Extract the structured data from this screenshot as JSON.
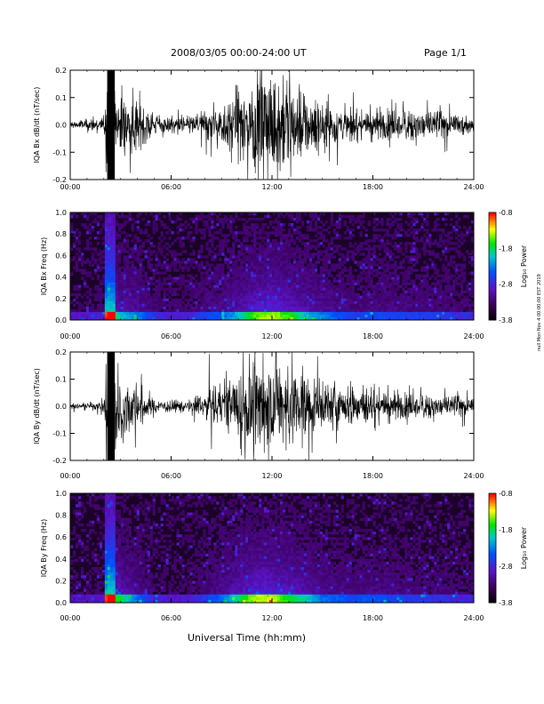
{
  "header": {
    "title": "2008/03/05  00:00-24:00 UT",
    "page": "Page 1/1"
  },
  "side_note": "null  Mon Nov 4 00:00:00 EST 2019",
  "x_axis_label": "Universal Time (hh:mm)",
  "colorbar": {
    "label": "Log₁₀ Power",
    "ticks": [
      "-0.8",
      "-1.8",
      "-2.8",
      "-3.8"
    ]
  },
  "chart_data": [
    {
      "type": "line",
      "ylabel": "IQA Bx dB/dt (nT/sec)",
      "xlabel": "",
      "xlim": [
        "00:00",
        "24:00"
      ],
      "x_ticks": [
        "00:00",
        "06:00",
        "12:00",
        "18:00",
        "24:00"
      ],
      "ylim": [
        -0.2,
        0.2
      ],
      "y_ticks": [
        "0.2",
        "0.1",
        "0.0",
        "-0.1",
        "-0.2"
      ],
      "envelope_hours": [
        0,
        1,
        2,
        2.2,
        3,
        4,
        5,
        6,
        7,
        8,
        9,
        10,
        11,
        12,
        13,
        14,
        15,
        16,
        17,
        18,
        19,
        20,
        21,
        22,
        23,
        24
      ],
      "envelope_amplitude": [
        0.015,
        0.02,
        0.03,
        0.2,
        0.12,
        0.09,
        0.04,
        0.03,
        0.025,
        0.06,
        0.07,
        0.12,
        0.18,
        0.2,
        0.17,
        0.12,
        0.09,
        0.07,
        0.05,
        0.06,
        0.06,
        0.055,
        0.055,
        0.045,
        0.04,
        0.035
      ]
    },
    {
      "type": "heatmap",
      "ylabel": "IQA Bx Freq (Hz)",
      "xlim": [
        "00:00",
        "24:00"
      ],
      "x_ticks": [
        "00:00",
        "06:00",
        "12:00",
        "18:00",
        "24:00"
      ],
      "ylim": [
        0.0,
        1.0
      ],
      "y_ticks": [
        "1.0",
        "0.8",
        "0.6",
        "0.4",
        "0.2",
        "0.0"
      ],
      "zlim": [
        -3.8,
        -0.8
      ],
      "zlabel": "Log₁₀ Power"
    },
    {
      "type": "line",
      "ylabel": "IQA By dB/dt (nT/sec)",
      "xlim": [
        "00:00",
        "24:00"
      ],
      "x_ticks": [
        "00:00",
        "06:00",
        "12:00",
        "18:00",
        "24:00"
      ],
      "ylim": [
        -0.2,
        0.2
      ],
      "y_ticks": [
        "0.2",
        "0.1",
        "0.0",
        "-0.1",
        "-0.2"
      ],
      "envelope_hours": [
        0,
        1,
        2,
        2.2,
        3,
        4,
        5,
        6,
        7,
        8,
        9,
        10,
        11,
        12,
        13,
        14,
        15,
        16,
        17,
        18,
        19,
        20,
        21,
        22,
        23,
        24
      ],
      "envelope_amplitude": [
        0.01,
        0.012,
        0.02,
        0.2,
        0.15,
        0.08,
        0.03,
        0.02,
        0.02,
        0.05,
        0.08,
        0.14,
        0.2,
        0.2,
        0.16,
        0.13,
        0.08,
        0.07,
        0.06,
        0.07,
        0.06,
        0.05,
        0.045,
        0.04,
        0.035,
        0.03
      ]
    },
    {
      "type": "heatmap",
      "ylabel": "IQA By Freq (Hz)",
      "xlim": [
        "00:00",
        "24:00"
      ],
      "x_ticks": [
        "00:00",
        "06:00",
        "12:00",
        "18:00",
        "24:00"
      ],
      "ylim": [
        0.0,
        1.0
      ],
      "y_ticks": [
        "1.0",
        "0.8",
        "0.6",
        "0.4",
        "0.2",
        "0.0"
      ],
      "zlim": [
        -3.8,
        -0.8
      ],
      "zlabel": "Log₁₀ Power"
    }
  ]
}
